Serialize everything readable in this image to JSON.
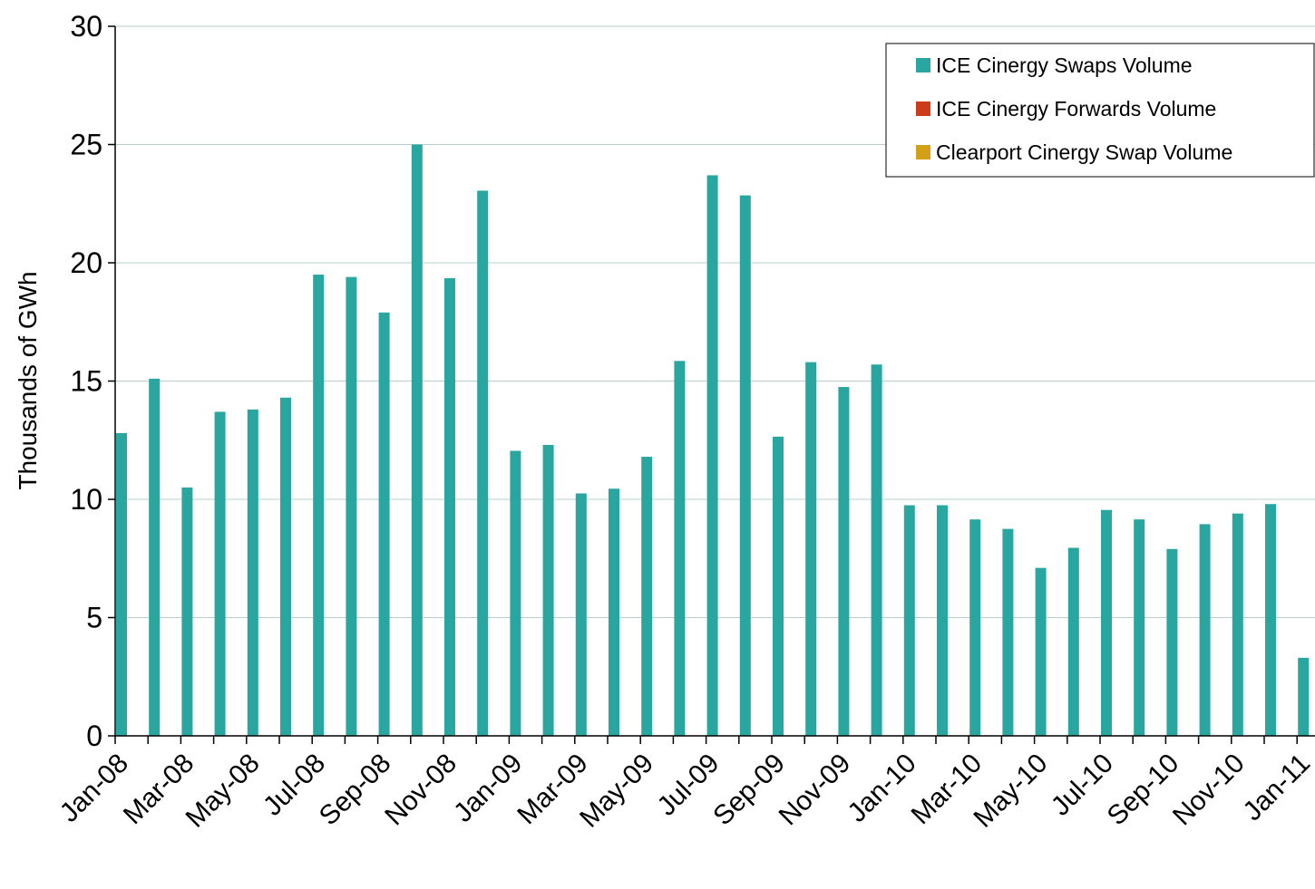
{
  "chart_data": {
    "type": "bar",
    "y_label": "Thousands of GWh",
    "categories": [
      "Jan-08",
      null,
      "Mar-08",
      null,
      "May-08",
      null,
      "Jul-08",
      null,
      "Sep-08",
      null,
      "Nov-08",
      null,
      "Jan-09",
      null,
      "Mar-09",
      null,
      "May-09",
      null,
      "Jul-09",
      null,
      "Sep-09",
      null,
      "Nov-09",
      null,
      "Jan-10",
      null,
      "Mar-10",
      null,
      "May-10",
      null,
      "Jul-10",
      null,
      "Sep-10",
      null,
      "Nov-10",
      null,
      "Jan-11"
    ],
    "series": [
      {
        "name": "ICE Cinergy Swaps Volume",
        "color": "#2aa6a0",
        "values": [
          12.8,
          15.1,
          10.5,
          13.7,
          13.8,
          14.3,
          19.5,
          19.4,
          17.9,
          25.0,
          19.35,
          23.05,
          12.05,
          12.3,
          10.25,
          10.45,
          11.8,
          15.85,
          23.7,
          22.85,
          12.65,
          15.8,
          14.75,
          15.7,
          9.75,
          9.75,
          9.15,
          8.75,
          7.1,
          7.95,
          9.55,
          9.15,
          7.9,
          8.95,
          9.4,
          9.8,
          3.3
        ]
      },
      {
        "name": "ICE Cinergy Forwards Volume",
        "color": "#cc3b1a",
        "values": [
          0,
          0,
          0,
          0,
          0,
          0,
          0,
          0,
          0,
          0,
          0,
          0,
          0,
          0,
          0,
          0,
          0,
          0,
          0,
          0,
          0,
          0,
          0,
          0,
          0,
          0,
          0,
          0,
          0,
          0,
          0,
          0,
          0,
          0,
          0,
          0,
          0
        ]
      },
      {
        "name": "Clearport Cinergy Swap Volume",
        "color": "#d4a017",
        "values": [
          0,
          0,
          0,
          0,
          0,
          0,
          0,
          0,
          0,
          0,
          0,
          0,
          0,
          0,
          0,
          0,
          0,
          0,
          0,
          0,
          0,
          0,
          0,
          0,
          0,
          0,
          0,
          0,
          0,
          0,
          0,
          0,
          0,
          0,
          0,
          0,
          0
        ]
      }
    ],
    "ylim": [
      0,
      30
    ],
    "yticks": [
      0,
      5,
      10,
      15,
      20,
      25,
      30
    ],
    "grid": true,
    "legend": "top-right"
  }
}
